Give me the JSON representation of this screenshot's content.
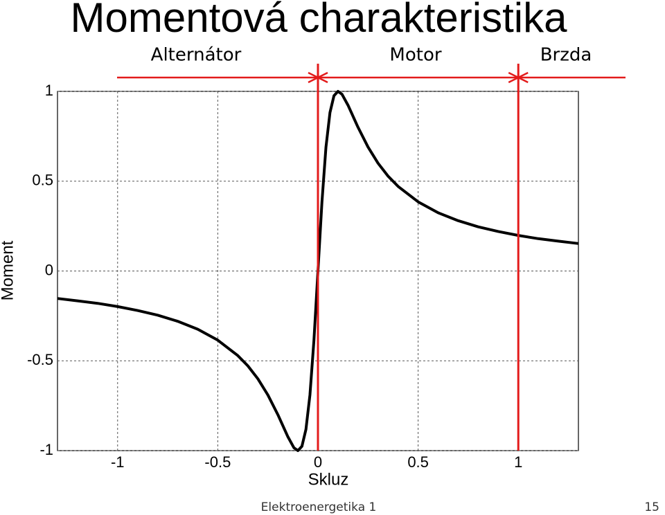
{
  "chart_data": {
    "type": "line",
    "title": "Momentová charakteristika",
    "x_label": "Skluz",
    "y_label": "Moment",
    "x": [
      -1.3,
      -1.2,
      -1.1,
      -1,
      -0.9,
      -0.8,
      -0.7,
      -0.6,
      -0.5,
      -0.4,
      -0.35,
      -0.3,
      -0.25,
      -0.2,
      -0.15,
      -0.12,
      -0.1,
      -0.08,
      -0.06,
      -0.04,
      -0.02,
      0,
      0.02,
      0.04,
      0.06,
      0.08,
      0.1,
      0.12,
      0.15,
      0.2,
      0.25,
      0.3,
      0.35,
      0.4,
      0.5,
      0.6,
      0.7,
      0.8,
      0.9,
      1,
      1.1,
      1.2,
      1.3
    ],
    "series": [
      {
        "color": "#000000",
        "values": [
          -0.153,
          -0.166,
          -0.18,
          -0.198,
          -0.22,
          -0.246,
          -0.28,
          -0.324,
          -0.385,
          -0.471,
          -0.528,
          -0.6,
          -0.69,
          -0.8,
          -0.923,
          -0.984,
          -1,
          -0.976,
          -0.882,
          -0.69,
          -0.385,
          0,
          0.385,
          0.69,
          0.882,
          0.976,
          1,
          0.984,
          0.923,
          0.8,
          0.69,
          0.6,
          0.528,
          0.471,
          0.385,
          0.324,
          0.28,
          0.246,
          0.22,
          0.198,
          0.18,
          0.166,
          0.153
        ]
      }
    ],
    "xlim": [
      -1.3,
      1.3
    ],
    "ylim": [
      -1,
      1
    ],
    "xticks": [
      -1,
      -0.5,
      0,
      0.5,
      1
    ],
    "yticks": [
      -1,
      -0.5,
      0,
      0.5,
      1
    ],
    "grid": true,
    "vlines": [
      0,
      1
    ],
    "vline_color": "#e31b1b",
    "regions": [
      "Alternátor",
      "Motor",
      "Brzda"
    ]
  },
  "footer": {
    "text": "Elektroenergetika 1",
    "page": "15"
  }
}
